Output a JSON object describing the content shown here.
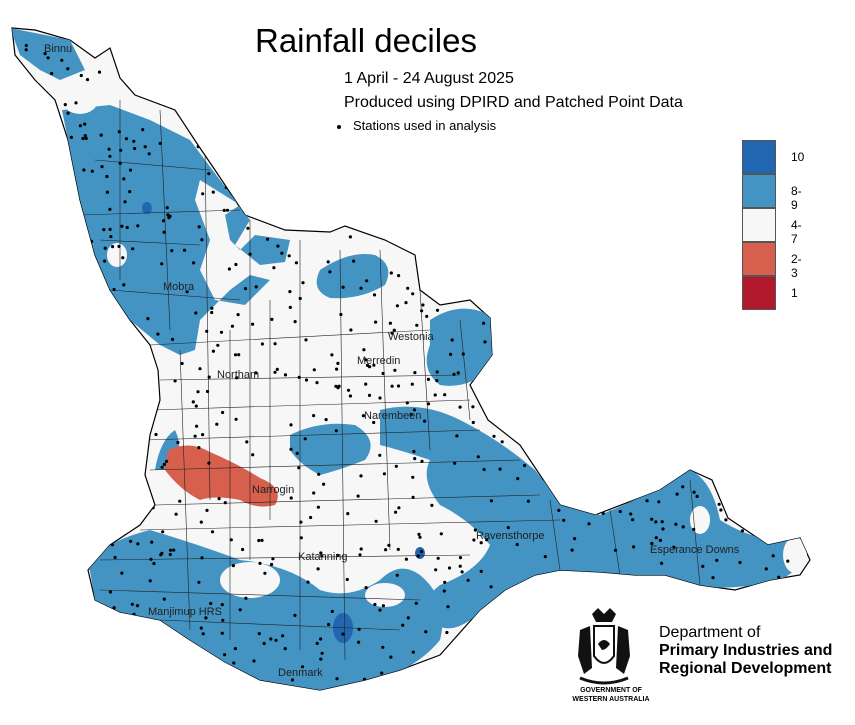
{
  "title": "Rainfall deciles",
  "subtitle_period": "1 April - 24 August 2025",
  "subtitle_source": "Produced using DPIRD and Patched Point Data",
  "stations_legend": "Stations used in analysis",
  "legend": [
    {
      "label": "10",
      "color": "#2166b0"
    },
    {
      "label": "8-9",
      "color": "#4393c3"
    },
    {
      "label": "4-7",
      "color": "#f7f7f7"
    },
    {
      "label": "2-3",
      "color": "#d6604d"
    },
    {
      "label": "1",
      "color": "#b2182b"
    }
  ],
  "towns": [
    {
      "name": "Binnu"
    },
    {
      "name": "Mobra"
    },
    {
      "name": "Westonia"
    },
    {
      "name": "Merredin"
    },
    {
      "name": "Northam"
    },
    {
      "name": "Narembeen"
    },
    {
      "name": "Narrogin"
    },
    {
      "name": "Ravensthorpe"
    },
    {
      "name": "Esperance Downs"
    },
    {
      "name": "Katanning"
    },
    {
      "name": "Manjimup HRS"
    },
    {
      "name": "Denmark"
    }
  ],
  "organisation": {
    "line1": "Department of",
    "line2": "Primary Industries and",
    "line3": "Regional Development",
    "government_line1": "GOVERNMENT OF",
    "government_line2": "WESTERN AUSTRALIA"
  },
  "crest": "western-australia-crest-icon"
}
